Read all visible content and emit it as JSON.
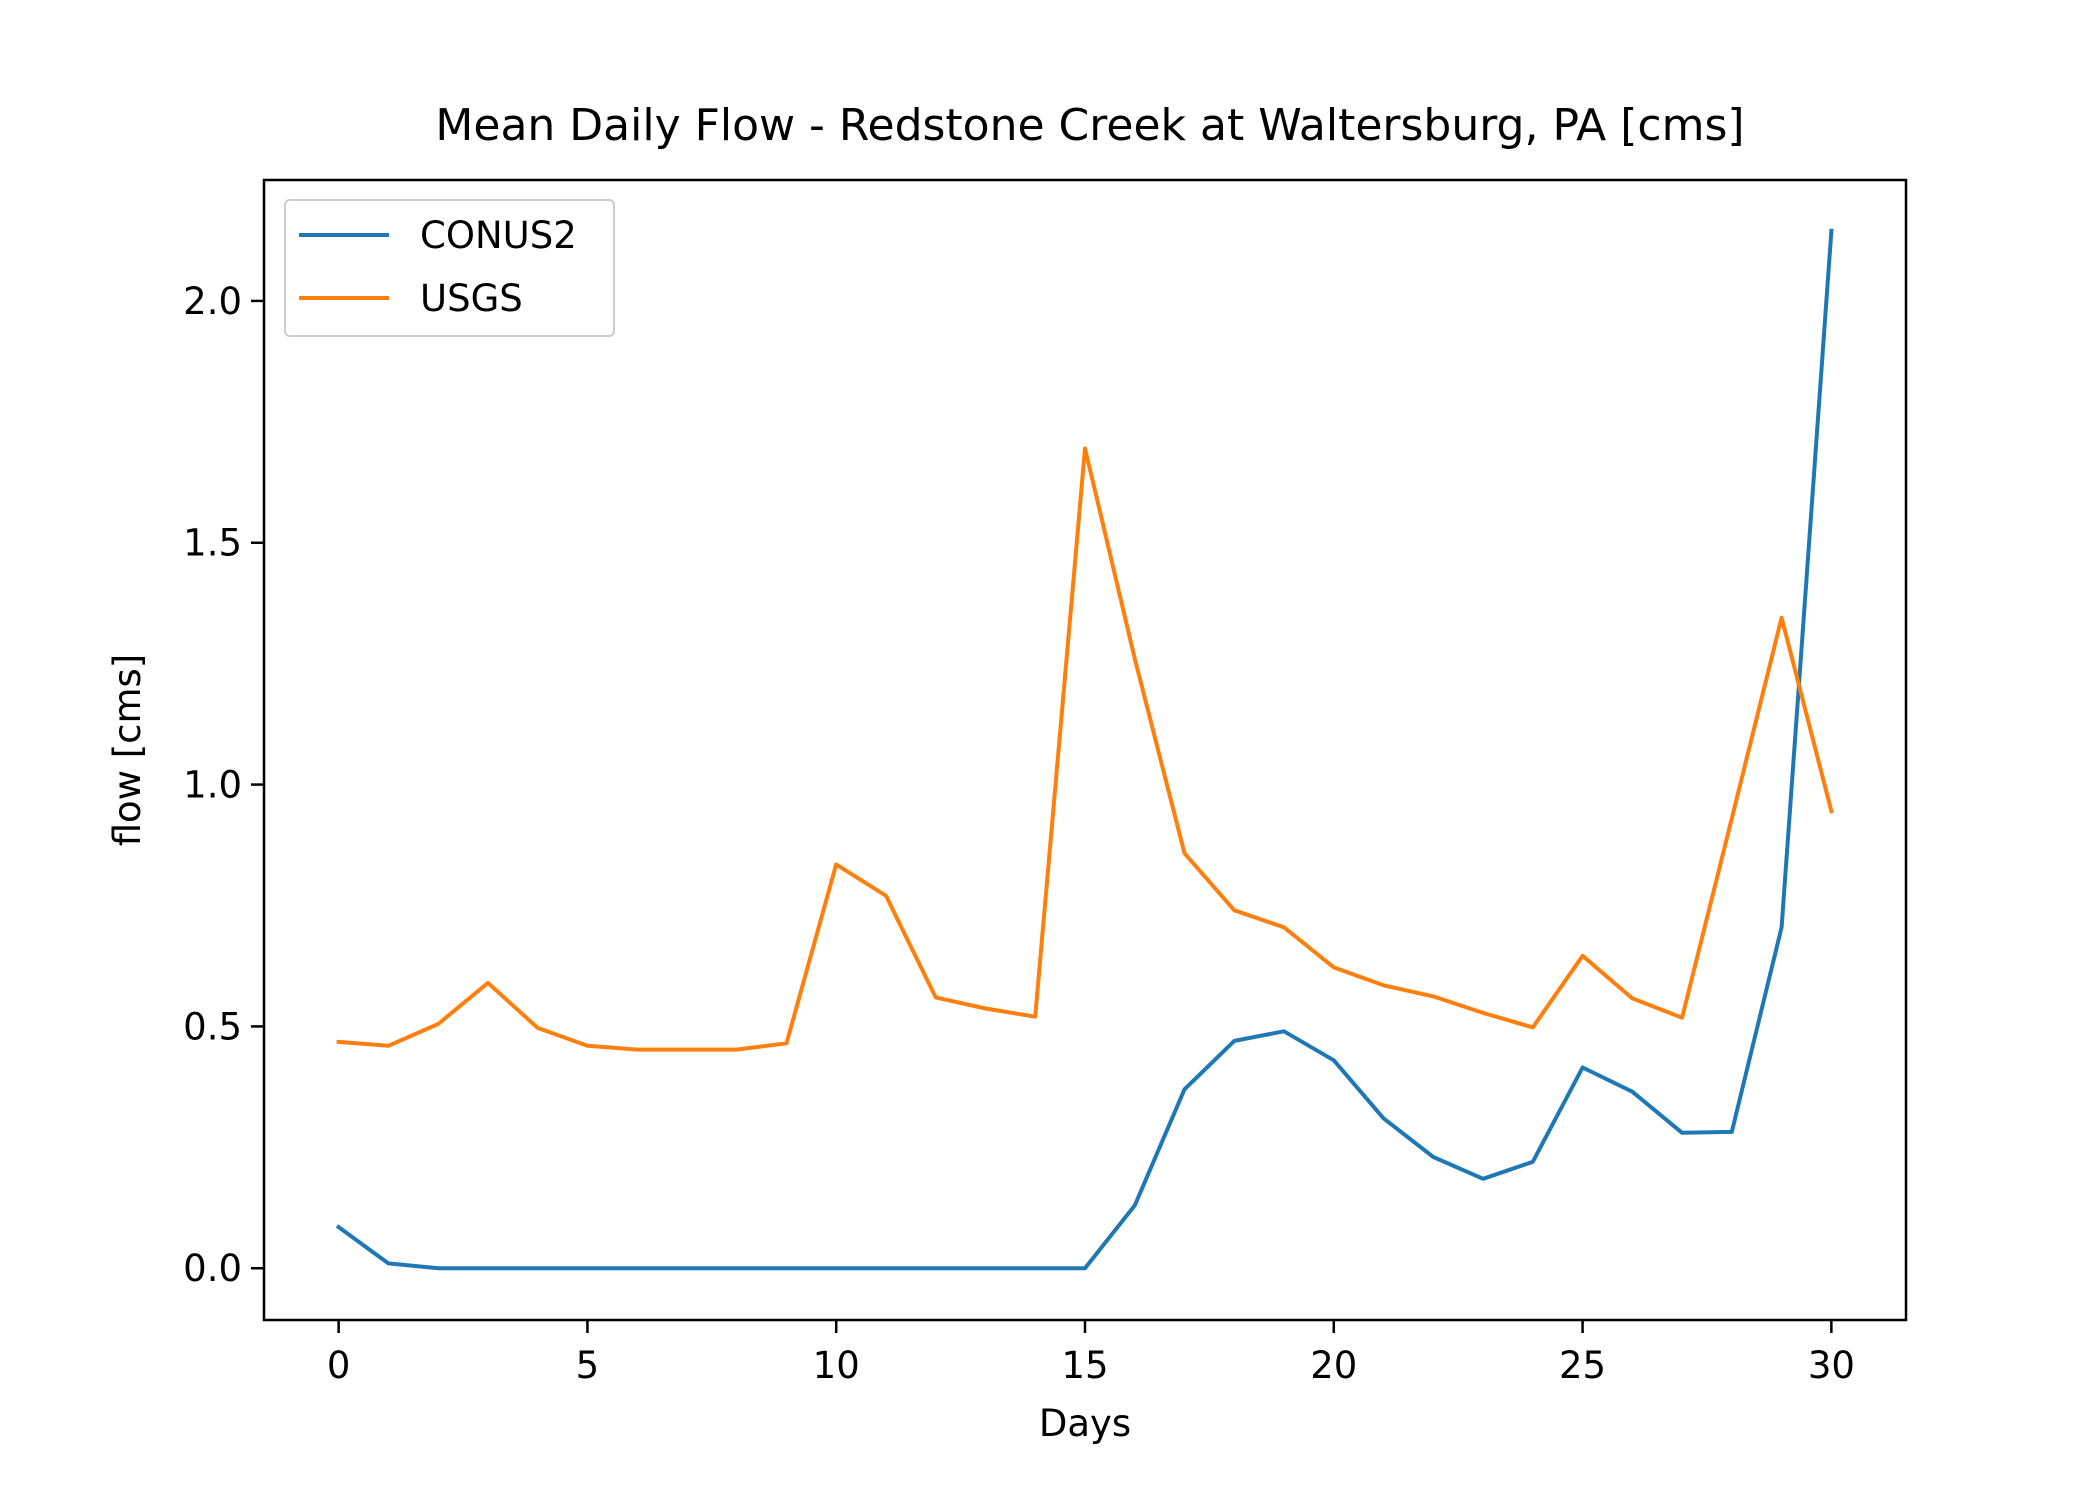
{
  "chart_data": {
    "type": "line",
    "title": "Mean Daily Flow - Redstone Creek at Waltersburg, PA [cms]",
    "xlabel": "Days",
    "ylabel": "flow [cms]",
    "xlim": [
      -1.5,
      31.5
    ],
    "ylim": [
      -0.107,
      2.25
    ],
    "xticks": [
      0,
      5,
      10,
      15,
      20,
      25,
      30
    ],
    "yticks": [
      0.0,
      0.5,
      1.0,
      1.5,
      2.0
    ],
    "xtick_labels": [
      "0",
      "5",
      "10",
      "15",
      "20",
      "25",
      "30"
    ],
    "ytick_labels": [
      "0.0",
      "0.5",
      "1.0",
      "1.5",
      "2.0"
    ],
    "grid": false,
    "legend_position": "top-left",
    "x": [
      0,
      1,
      2,
      3,
      4,
      5,
      6,
      7,
      8,
      9,
      10,
      11,
      12,
      13,
      14,
      15,
      16,
      17,
      18,
      19,
      20,
      21,
      22,
      23,
      24,
      25,
      26,
      27,
      28,
      29,
      30
    ],
    "series": [
      {
        "name": "CONUS2",
        "color": "#1f77b4",
        "values": [
          0.085,
          0.01,
          0.0,
          0.0,
          0.0,
          0.0,
          0.0,
          0.0,
          0.0,
          0.0,
          0.0,
          0.0,
          0.0,
          0.0,
          0.0,
          0.0,
          0.13,
          0.37,
          0.47,
          0.49,
          0.43,
          0.31,
          0.23,
          0.185,
          0.22,
          0.415,
          0.365,
          0.28,
          0.282,
          0.705,
          2.145
        ]
      },
      {
        "name": "USGS",
        "color": "#ff7f0e",
        "values": [
          0.468,
          0.46,
          0.505,
          0.59,
          0.497,
          0.46,
          0.452,
          0.452,
          0.452,
          0.465,
          0.835,
          0.77,
          0.56,
          0.537,
          0.52,
          1.695,
          1.26,
          0.858,
          0.74,
          0.705,
          0.622,
          0.585,
          0.562,
          0.528,
          0.498,
          0.646,
          0.558,
          0.518,
          0.93,
          1.345,
          0.945
        ]
      }
    ]
  }
}
